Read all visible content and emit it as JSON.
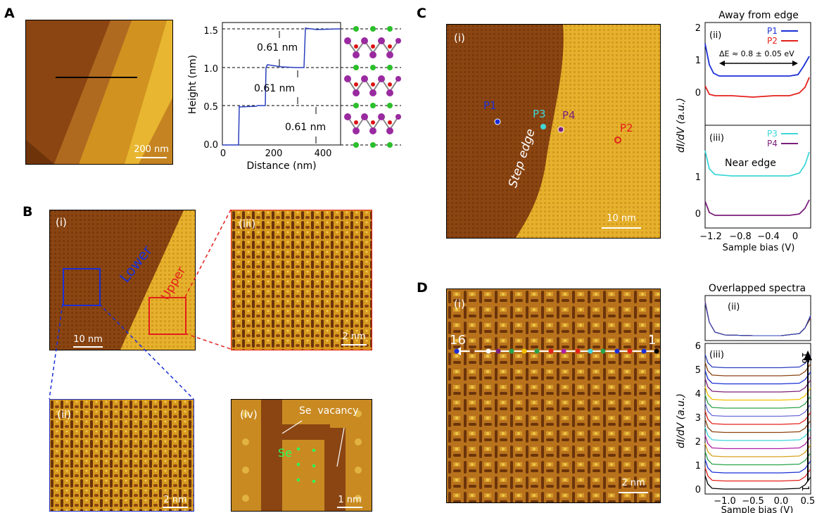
{
  "panels": {
    "A": {
      "label": "A",
      "image_scale": "200 nm",
      "profile": {
        "xlabel": "Distance (nm)",
        "ylabel": "Height (nm)",
        "xticks": [
          "0",
          "200",
          "400"
        ],
        "yticks": [
          "0.0",
          "0.5",
          "1.0",
          "1.5"
        ],
        "step_labels": [
          "0.61 nm",
          "0.61 nm",
          "0.61 nm"
        ],
        "line_color": "#2b3fbf"
      }
    },
    "B": {
      "label": "B",
      "i": {
        "tag": "(i)",
        "lower": "Lower",
        "upper": "Upper",
        "scale": "10 nm"
      },
      "ii": {
        "tag": "(ii)",
        "scale": "2 nm"
      },
      "iii": {
        "tag": "(iii)",
        "scale": "2 nm"
      },
      "iv": {
        "tag": "(iv)",
        "se_label": "Se",
        "vac_label": "Se  vacancy",
        "se_green": "Se",
        "scale": "1 nm"
      }
    },
    "C": {
      "label": "C",
      "i": {
        "tag": "(i)",
        "points": [
          "P1",
          "P3",
          "P4",
          "P2"
        ],
        "edge": "Step edge",
        "scale": "10 nm"
      },
      "spectra": {
        "title": "Away from edge",
        "ii_tag": "(ii)",
        "iii_tag": "(iii)",
        "legend_ii": [
          "P1",
          "P2"
        ],
        "legend_iii": [
          "P3",
          "P4"
        ],
        "gap_text": "ΔE ≈ 0.8 ± 0.05 eV",
        "near_edge": "Near edge",
        "ylabel": "dI/dV (a.u.)",
        "xlabel": "Sample bias (V)",
        "xticks": [
          "−1.2",
          "−0.8",
          "−0.4",
          "0"
        ],
        "yticks_ii": [
          "0",
          "1",
          "2"
        ],
        "yticks_iii": [
          "0",
          "1"
        ],
        "colors": {
          "P1": "#1a2fd6",
          "P2": "#e3201b",
          "P3": "#3fd6d8",
          "P4": "#7b1f7b"
        }
      }
    },
    "D": {
      "label": "D",
      "i": {
        "tag": "(i)",
        "start": "16",
        "end": "1",
        "scale": "2 nm"
      },
      "spectra": {
        "title": "Overlapped spectra",
        "ii_tag": "(ii)",
        "iii_tag": "(iii)",
        "ylabel": "dI/dV (a.u.)",
        "xlabel": "Sample bias (V)",
        "xticks": [
          "−1.0",
          "−0.5",
          "0.0",
          "0.5"
        ],
        "yticks": [
          "0",
          "1",
          "2",
          "3",
          "4",
          "5",
          "6"
        ],
        "arrow_top": "16",
        "arrow_bottom": "1",
        "colors": [
          "#000000",
          "#e3201b",
          "#1a2fd6",
          "#2aa34a",
          "#d6a21a",
          "#b01ea5",
          "#3fd6d8",
          "#8b4513",
          "#e3201b",
          "#6b6bd6",
          "#2aa34a",
          "#f0c000",
          "#7b1f7b",
          "#1a2fd6",
          "#8b4513",
          "#2b3fbf"
        ]
      }
    }
  }
}
